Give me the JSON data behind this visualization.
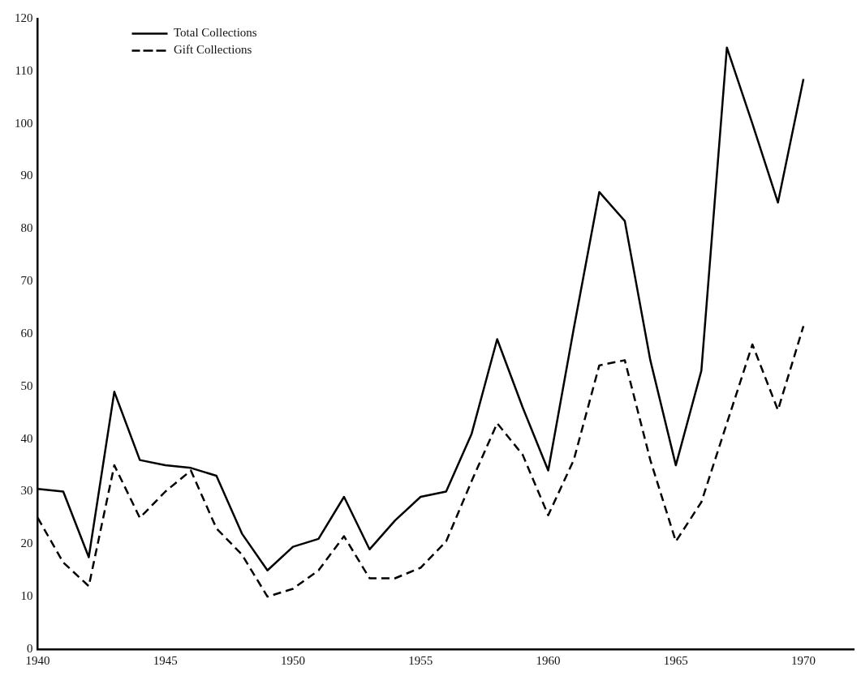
{
  "chart_data": {
    "type": "line",
    "x": [
      1940,
      1941,
      1942,
      1943,
      1944,
      1945,
      1946,
      1947,
      1948,
      1949,
      1950,
      1951,
      1952,
      1953,
      1954,
      1955,
      1956,
      1957,
      1958,
      1959,
      1960,
      1961,
      1962,
      1963,
      1964,
      1965,
      1966,
      1967,
      1968,
      1969,
      1970
    ],
    "series": [
      {
        "name": "Total Collections",
        "color": "#000000",
        "line_style": "solid",
        "values": [
          30.5,
          30,
          17.5,
          49,
          36,
          35,
          34.5,
          33,
          22,
          15,
          19.5,
          21,
          29,
          19,
          24.5,
          29,
          30,
          41,
          59,
          46,
          34,
          61,
          87,
          81.5,
          55,
          35,
          53,
          114.5,
          100,
          85,
          108.5
        ]
      },
      {
        "name": "Gift Collections",
        "color": "#000000",
        "line_style": "dashed",
        "values": [
          25,
          16.5,
          12,
          35,
          25,
          30,
          34,
          23,
          18,
          10,
          11.5,
          15,
          21.5,
          13.5,
          13.5,
          15.5,
          20.5,
          32,
          43,
          37,
          25.5,
          36,
          54,
          55,
          36,
          20.5,
          28,
          43,
          58,
          45.5,
          61.5
        ]
      }
    ],
    "xlim": [
      1940,
      1972
    ],
    "xticks": [
      1940,
      1945,
      1950,
      1955,
      1960,
      1965,
      1970
    ],
    "ylim": [
      0,
      120
    ],
    "yticks": [
      0,
      10,
      20,
      30,
      40,
      50,
      60,
      70,
      80,
      90,
      100,
      110,
      120
    ],
    "grid": false,
    "legend": "top left",
    "marker": "none"
  }
}
